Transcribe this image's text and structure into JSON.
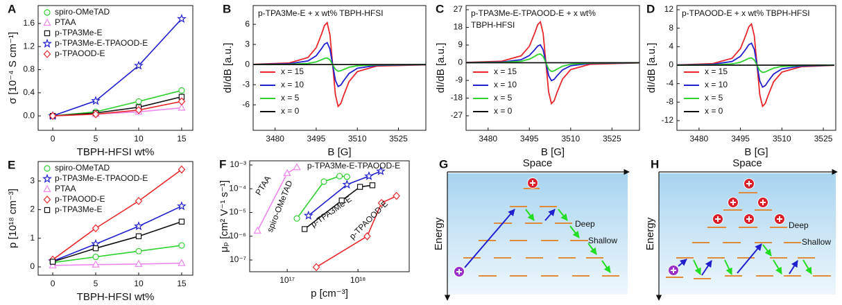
{
  "chart_data": [
    {
      "panel_label": "A",
      "type": "line",
      "x": [
        0,
        5,
        10,
        15
      ],
      "xlim": [
        -1.7,
        16.3
      ],
      "xticks": [
        0,
        5,
        10,
        15
      ],
      "ylim": [
        -0.25,
        1.91
      ],
      "yticks": [
        {
          "value": 0,
          "label": "0.0"
        },
        0.4,
        0.8,
        1.2,
        1.6
      ],
      "x_label": "TBPH-HFSI wt%",
      "y_label": "σ [10⁻⁴ S cm⁻¹]",
      "legend": "upper left",
      "series": [
        {
          "name": "spiro-OMeTAD",
          "color": "#2fd12f",
          "marker": "circle",
          "values": [
            0,
            0.07,
            0.25,
            0.44
          ]
        },
        {
          "name": "PTAA",
          "color": "#ee88ee",
          "marker": "triangle",
          "values": [
            0,
            0.03,
            0.07,
            0.14
          ]
        },
        {
          "name": "p-TPA3Me-E",
          "color": "#111111",
          "marker": "square",
          "values": [
            0,
            0.05,
            0.15,
            0.33
          ]
        },
        {
          "name": "p-TPA3Me-E-TPAOOD-E",
          "color": "#1f1fcf",
          "marker": "star",
          "values": [
            0,
            0.26,
            0.87,
            1.68
          ]
        },
        {
          "name": "p-TPAOOD-E",
          "color": "#e8262a",
          "marker": "diamond",
          "values": [
            0,
            0.03,
            0.1,
            0.25
          ]
        }
      ]
    },
    {
      "panel_label": "B",
      "type": "line",
      "title": [
        "p-TPA3Me-E + x wt% TBPH-HFSI"
      ],
      "x": [
        3472,
        3485,
        3492,
        3495,
        3497,
        3498,
        3499,
        3500,
        3501,
        3502,
        3503,
        3504,
        3505,
        3507,
        3510,
        3517,
        3535
      ],
      "xlim": [
        3472,
        3535
      ],
      "xticks": [
        3480,
        3495,
        3510,
        3525
      ],
      "ylim": [
        -9.8,
        8.8
      ],
      "yticks": [
        -6,
        -3,
        0,
        3,
        6
      ],
      "x_label": "B [G]",
      "y_label": "dI/dB [a.u.]",
      "legend": "lower left",
      "series": [
        {
          "name": "x = 15",
          "color": "#e8262a",
          "values": [
            0.04,
            0.23,
            1.05,
            2.52,
            4.6,
            5.8,
            6.24,
            4.47,
            0,
            -4.47,
            -6.24,
            -5.8,
            -4.6,
            -2.52,
            -1.05,
            -0.23,
            -0.03
          ]
        },
        {
          "name": "x = 10",
          "color": "#1f1fcf",
          "values": [
            0.02,
            0.12,
            0.55,
            1.32,
            2.41,
            3.04,
            3.27,
            2.34,
            0,
            -2.34,
            -3.27,
            -3.04,
            -2.41,
            -1.32,
            -0.55,
            -0.12,
            -0.01
          ]
        },
        {
          "name": "x = 5",
          "color": "#2fd12f",
          "values": [
            0.01,
            0.04,
            0.17,
            0.4,
            0.73,
            0.92,
            0.99,
            0.71,
            0,
            -0.71,
            -0.99,
            -0.92,
            -0.73,
            -0.4,
            -0.17,
            -0.04,
            0
          ]
        },
        {
          "name": "x = 0",
          "color": "#111111",
          "values": [
            0,
            0,
            0,
            0,
            0,
            0,
            0,
            0,
            0,
            0,
            0,
            0,
            0,
            0,
            0,
            0,
            0
          ]
        }
      ]
    },
    {
      "panel_label": "C",
      "type": "line",
      "title": [
        "p-TPA3Me-E-TPAOOD-E + x wt%",
        "TBPH-HFSI"
      ],
      "x": [
        3472,
        3485,
        3492,
        3495,
        3497,
        3498,
        3499,
        3500,
        3501,
        3502,
        3503,
        3504,
        3505,
        3507,
        3510,
        3517,
        3535
      ],
      "xlim": [
        3472,
        3535
      ],
      "xticks": [
        3480,
        3495,
        3510,
        3525
      ],
      "ylim": [
        -34.4,
        29.1
      ],
      "yticks": [
        -27,
        -18,
        -9,
        0,
        9,
        18,
        27
      ],
      "x_label": "B [G]",
      "y_label": "dI/dB [a.u.]",
      "legend": "lower left",
      "series": [
        {
          "name": "x = 15",
          "color": "#e8262a",
          "values": [
            0.15,
            0.78,
            3.51,
            8.4,
            15.33,
            19.32,
            20.79,
            14.91,
            0,
            -14.91,
            -20.79,
            -19.32,
            -15.33,
            -8.4,
            -3.51,
            -0.78,
            -0.08
          ]
        },
        {
          "name": "x = 10",
          "color": "#1f1fcf",
          "values": [
            0.06,
            0.34,
            1.54,
            3.68,
            6.72,
            8.46,
            9.11,
            6.53,
            0,
            -6.53,
            -9.11,
            -8.46,
            -6.72,
            -3.68,
            -1.54,
            -0.34,
            -0.04
          ]
        },
        {
          "name": "x = 5",
          "color": "#2fd12f",
          "values": [
            0.03,
            0.17,
            0.75,
            1.8,
            3.29,
            4.14,
            4.46,
            3.2,
            0,
            -3.2,
            -4.46,
            -4.14,
            -3.29,
            -1.8,
            -0.75,
            -0.17,
            -0.02
          ]
        },
        {
          "name": "x = 0",
          "color": "#111111",
          "values": [
            0,
            0,
            0,
            0,
            0,
            0,
            0,
            0,
            0,
            0,
            0,
            0,
            0,
            0,
            0,
            0,
            0
          ]
        }
      ]
    },
    {
      "panel_label": "D",
      "type": "line",
      "title": [
        "p-TPAOOD-E + x wt% TBPH-HFSI"
      ],
      "x": [
        3472,
        3485,
        3492,
        3495,
        3497,
        3498,
        3499,
        3500,
        3501,
        3502,
        3503,
        3504,
        3505,
        3507,
        3510,
        3517,
        3529
      ],
      "xlim": [
        3472,
        3529.5
      ],
      "xticks": [
        3480,
        3495,
        3510,
        3525
      ],
      "ylim": [
        -14.1,
        12.9
      ],
      "yticks": [
        -12,
        -8,
        -4,
        0,
        4,
        8,
        12
      ],
      "x_label": "B [G]",
      "y_label": "dI/dB [a.u.]",
      "legend": "lower left",
      "series": [
        {
          "name": "x = 15",
          "color": "#e8262a",
          "values": [
            0.06,
            0.33,
            1.5,
            3.6,
            6.57,
            8.28,
            8.91,
            6.39,
            0,
            -6.39,
            -8.91,
            -8.28,
            -6.57,
            -3.6,
            -1.5,
            -0.33,
            -0.04
          ]
        },
        {
          "name": "x = 10",
          "color": "#1f1fcf",
          "values": [
            0.03,
            0.18,
            0.8,
            1.92,
            3.5,
            4.42,
            4.75,
            3.41,
            0,
            -3.41,
            -4.75,
            -4.42,
            -3.5,
            -1.92,
            -0.8,
            -0.18,
            -0.02
          ]
        },
        {
          "name": "x = 5",
          "color": "#2fd12f",
          "values": [
            0.01,
            0.06,
            0.27,
            0.64,
            1.17,
            1.47,
            1.58,
            1.14,
            0,
            -1.14,
            -1.58,
            -1.47,
            -1.17,
            -0.64,
            -0.27,
            -0.06,
            -0.01
          ]
        },
        {
          "name": "x = 0",
          "color": "#111111",
          "values": [
            0,
            0,
            0,
            0,
            0,
            0,
            0,
            0,
            0,
            0,
            0,
            0,
            0,
            0,
            0,
            0,
            0
          ]
        }
      ]
    },
    {
      "panel_label": "E",
      "type": "line",
      "x": [
        0,
        5,
        10,
        15
      ],
      "xlim": [
        -1.7,
        16.3
      ],
      "xticks": [
        0,
        5,
        10,
        15
      ],
      "ylim": [
        -0.29,
        3.68
      ],
      "yticks": [
        0,
        1,
        2,
        3
      ],
      "x_label": "TBPH-HFSI wt%",
      "y_label": "p [10¹⁸ cm⁻³]",
      "legend": "upper left",
      "series": [
        {
          "name": "spiro-OMeTAD",
          "color": "#2fd12f",
          "marker": "circle",
          "values": [
            0.15,
            0.35,
            0.55,
            0.75
          ]
        },
        {
          "name": "p-TPA3Me-E-TPAOOD-E",
          "color": "#1f1fcf",
          "marker": "star",
          "values": [
            0.2,
            0.8,
            1.42,
            2.12
          ]
        },
        {
          "name": "PTAA",
          "color": "#ee88ee",
          "marker": "triangle",
          "values": [
            0.05,
            0.08,
            0.1,
            0.13
          ]
        },
        {
          "name": "p-TPAOOD-E",
          "color": "#e8262a",
          "marker": "diamond",
          "values": [
            0.25,
            1.35,
            2.3,
            3.4
          ]
        },
        {
          "name": "p-TPA3Me-E",
          "color": "#111111",
          "marker": "square",
          "values": [
            0.18,
            0.65,
            1.07,
            1.58
          ]
        }
      ]
    },
    {
      "panel_label": "F",
      "type": "scatter",
      "xscale": "log",
      "yscale": "log",
      "xlim": [
        2.95e+16,
        5.3e+18
      ],
      "xticks": [
        {
          "value": 1e+17,
          "label": "10¹⁷"
        },
        {
          "value": 1e+18,
          "label": "10¹⁸"
        }
      ],
      "ylim": [
        3.2e-08,
        0.0015
      ],
      "yticks": [
        {
          "value": 1e-07,
          "label": "10⁻⁷"
        },
        {
          "value": 1e-06,
          "label": "10⁻⁶"
        },
        {
          "value": 1e-05,
          "label": "10⁻⁵"
        },
        {
          "value": 0.0001,
          "label": "10⁻⁴"
        },
        {
          "value": 0.001,
          "label": "10⁻³"
        }
      ],
      "x_label": "p [cm⁻³]",
      "y_label": "μₚ [cm² V⁻¹ s⁻¹]",
      "series": [
        {
          "name": "PTAA",
          "color": "#ee88ee",
          "marker": "triangle",
          "x": [
            3.8e+16,
            1e+17,
            1.37e+17
          ],
          "values": [
            1.7e-06,
            0.00045,
            0.0008
          ]
        },
        {
          "name": "spiro-OMeTAD",
          "color": "#2fd12f",
          "marker": "circle",
          "x": [
            1.37e+17,
            3.3e+17,
            5.5e+17,
            7e+17
          ],
          "values": [
            5.6e-06,
            0.0002,
            0.00034,
            0.00032
          ]
        },
        {
          "name": "p-TPA3Me-E-TPAOOD-E",
          "color": "#1f1fcf",
          "marker": "star",
          "x": [
            2e+17,
            7e+17,
            1.43e+18,
            2.1e+18
          ],
          "values": [
            7.4e-06,
            0.00015,
            0.00034,
            0.00055
          ]
        },
        {
          "name": "p-TPA3Me-E",
          "color": "#111111",
          "marker": "square",
          "x": [
            1.76e+17,
            5.9e+17,
            1.07e+18,
            1.6e+18
          ],
          "values": [
            2e-06,
            3.2e-05,
            0.00012,
            0.00014
          ]
        },
        {
          "name": "p-TPAOOD-E",
          "color": "#e8262a",
          "marker": "diamond",
          "x": [
            2.58e+17,
            1.35e+18,
            2.15e+18,
            3.5e+18
          ],
          "values": [
            5e-08,
            1e-06,
            2.5e-05,
            5e-05
          ]
        }
      ]
    }
  ],
  "diagrams": [
    {
      "panel_label": "G",
      "x_label": "Space",
      "y_label": "Energy",
      "annotations": [
        "Deep",
        "Shallow"
      ]
    },
    {
      "panel_label": "H",
      "x_label": "Space",
      "y_label": "Energy",
      "annotations": [
        "Deep",
        "Shallow"
      ]
    }
  ]
}
